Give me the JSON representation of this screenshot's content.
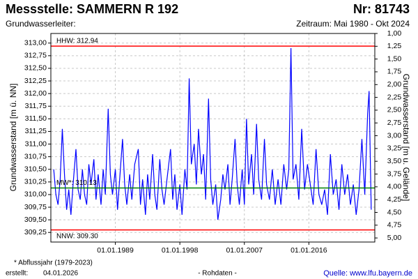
{
  "chart_data": {
    "type": "line",
    "title": "Messstelle: SAMMERN R 192",
    "station_number": "Nr: 81743",
    "aquifer_label": "Grundwasserleiter:",
    "period": "Zeitraum: Mai 1980 - Okt 2024",
    "ylabel": "Grundwasserstand [m ü. NN]",
    "y2label": "Grundwasserstand [m u. Gelände]",
    "footnote": "* Abflussjahr (1979-2023)",
    "created_label": "erstellt:",
    "created_date": "04.01.2026",
    "data_note": "- Rohdaten -",
    "source": "Quelle: www.lfu.bayern.de",
    "color": "#0000ff",
    "grid": true,
    "xlim": [
      1980.0,
      2025.2
    ],
    "xticks": [
      {
        "value": 1989,
        "label": "01.01.1989"
      },
      {
        "value": 1998,
        "label": "01.01.1998"
      },
      {
        "value": 2007,
        "label": "01.01.2007"
      },
      {
        "value": 2016,
        "label": "01.01.2016"
      }
    ],
    "ylim": [
      309.06,
      313.19
    ],
    "yticks": [
      {
        "value": 309.25,
        "label": "309,25"
      },
      {
        "value": 309.5,
        "label": "309,50"
      },
      {
        "value": 309.75,
        "label": "309,75"
      },
      {
        "value": 310,
        "label": "310,00"
      },
      {
        "value": 310.25,
        "label": "310,25"
      },
      {
        "value": 310.5,
        "label": "310,50"
      },
      {
        "value": 310.75,
        "label": "310,75"
      },
      {
        "value": 311,
        "label": "311,00"
      },
      {
        "value": 311.25,
        "label": "311,25"
      },
      {
        "value": 311.5,
        "label": "311,50"
      },
      {
        "value": 311.75,
        "label": "311,75"
      },
      {
        "value": 312,
        "label": "312,00"
      },
      {
        "value": 312.25,
        "label": "312,25"
      },
      {
        "value": 312.5,
        "label": "312,50"
      },
      {
        "value": 312.75,
        "label": "312,75"
      },
      {
        "value": 313,
        "label": "313,00"
      }
    ],
    "y2lim": [
      5.08,
      1.0
    ],
    "y2ticks": [
      {
        "value": 1,
        "label": "1,00"
      },
      {
        "value": 1.25,
        "label": "1,25"
      },
      {
        "value": 1.5,
        "label": "1,50"
      },
      {
        "value": 1.75,
        "label": "1,75"
      },
      {
        "value": 2,
        "label": "2,00"
      },
      {
        "value": 2.25,
        "label": "2,25"
      },
      {
        "value": 2.5,
        "label": "2,50"
      },
      {
        "value": 2.75,
        "label": "2,75"
      },
      {
        "value": 3,
        "label": "3,00"
      },
      {
        "value": 3.25,
        "label": "3,25"
      },
      {
        "value": 3.5,
        "label": "3,50"
      },
      {
        "value": 3.75,
        "label": "3,75"
      },
      {
        "value": 4,
        "label": "4,00"
      },
      {
        "value": 4.25,
        "label": "4,25"
      },
      {
        "value": 4.5,
        "label": "4,50"
      },
      {
        "value": 4.75,
        "label": "4,75"
      },
      {
        "value": 5,
        "label": "5,00"
      }
    ],
    "reference_lines": [
      {
        "label": "HHW: 312.94",
        "value": 312.94,
        "color": "#ff0000"
      },
      {
        "label": "MW*: 310.13",
        "value": 310.13,
        "color": "#008000"
      },
      {
        "label": "NNW: 309.30",
        "value": 309.3,
        "color": "#ff0000"
      }
    ],
    "x": [
      1980.4,
      1980.7,
      1981.0,
      1981.3,
      1981.6,
      1981.9,
      1982.2,
      1982.5,
      1982.8,
      1983.1,
      1983.5,
      1983.8,
      1984.1,
      1984.4,
      1984.7,
      1985.0,
      1985.3,
      1985.6,
      1986.0,
      1986.3,
      1986.6,
      1987.0,
      1987.3,
      1987.6,
      1988.0,
      1988.3,
      1988.6,
      1989.0,
      1989.3,
      1989.6,
      1990.0,
      1990.3,
      1990.6,
      1991.0,
      1991.3,
      1991.7,
      1992.2,
      1992.5,
      1992.8,
      1993.2,
      1993.5,
      1993.8,
      1994.2,
      1994.5,
      1994.8,
      1995.2,
      1995.5,
      1995.8,
      1996.2,
      1996.7,
      1997.0,
      1997.3,
      1997.6,
      1998.0,
      1998.3,
      1998.7,
      1999.0,
      1999.3,
      1999.6,
      2000.0,
      2000.3,
      2000.6,
      2001.0,
      2001.3,
      2001.6,
      2002.0,
      2002.3,
      2002.6,
      2003.0,
      2003.3,
      2003.7,
      2004.0,
      2004.3,
      2004.7,
      2005.0,
      2005.3,
      2005.7,
      2006.0,
      2006.3,
      2006.7,
      2007.0,
      2007.3,
      2007.6,
      2008.0,
      2008.3,
      2008.7,
      2009.0,
      2009.4,
      2009.8,
      2010.1,
      2010.5,
      2010.9,
      2011.3,
      2011.7,
      2012.1,
      2012.5,
      2012.9,
      2013.2,
      2013.5,
      2013.8,
      2014.2,
      2014.6,
      2015.0,
      2015.4,
      2015.8,
      2016.2,
      2016.6,
      2017.0,
      2017.4,
      2017.8,
      2018.2,
      2018.6,
      2019.0,
      2019.4,
      2019.8,
      2020.2,
      2020.6,
      2021.0,
      2021.4,
      2021.8,
      2022.2,
      2022.6,
      2023.0,
      2023.4,
      2023.8,
      2024.2,
      2024.4,
      2024.7
    ],
    "values": [
      310.5,
      310.0,
      309.8,
      310.3,
      311.3,
      310.4,
      309.7,
      310.1,
      309.6,
      310.2,
      310.9,
      310.1,
      309.9,
      310.5,
      310.0,
      309.8,
      310.6,
      310.2,
      310.7,
      309.9,
      310.4,
      309.8,
      310.5,
      310.0,
      311.7,
      310.4,
      310.0,
      310.5,
      309.7,
      310.3,
      311.1,
      310.2,
      309.8,
      310.4,
      309.9,
      310.6,
      310.9,
      309.8,
      310.3,
      309.6,
      310.4,
      309.9,
      310.8,
      310.0,
      309.7,
      310.7,
      310.1,
      309.8,
      310.3,
      310.9,
      309.9,
      310.4,
      309.7,
      310.2,
      309.6,
      310.5,
      310.1,
      312.3,
      310.6,
      311.0,
      310.2,
      311.3,
      310.4,
      310.8,
      309.9,
      311.9,
      310.3,
      309.8,
      310.2,
      309.5,
      309.9,
      310.4,
      310.1,
      310.6,
      309.8,
      310.3,
      311.1,
      310.2,
      309.8,
      310.5,
      309.8,
      311.5,
      310.2,
      310.8,
      310.0,
      311.4,
      310.3,
      309.9,
      311.1,
      310.2,
      309.9,
      310.5,
      309.8,
      310.3,
      309.8,
      310.6,
      310.1,
      310.5,
      312.9,
      310.3,
      310.6,
      309.9,
      311.3,
      310.1,
      310.6,
      310.2,
      309.8,
      310.9,
      310.0,
      309.8,
      310.1,
      309.6,
      310.8,
      310.0,
      310.3,
      309.7,
      310.6,
      310.0,
      310.4,
      309.8,
      310.2,
      309.6,
      310.1,
      311.1,
      310.0,
      311.6,
      312.05,
      309.7
    ]
  }
}
